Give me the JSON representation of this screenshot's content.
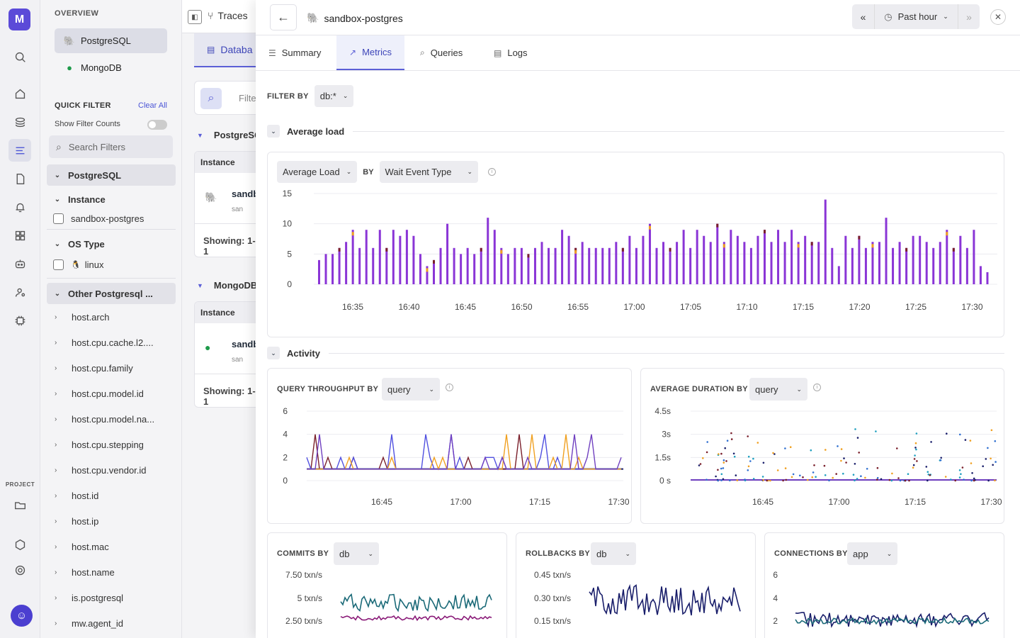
{
  "rail": {
    "logo": "M",
    "project_label": "PROJECT",
    "icons": [
      "search-icon",
      "home-icon",
      "layers-icon",
      "list-icon",
      "file-icon",
      "alert-icon",
      "dashboard-icon",
      "bot-icon",
      "user-search-icon",
      "chip-icon",
      "folder-icon",
      "cube-icon",
      "gear-icon"
    ],
    "avatar": "☺"
  },
  "filter_panel": {
    "overview_title": "OVERVIEW",
    "databases": [
      {
        "label": "PostgreSQL",
        "icon": "postgres-icon"
      },
      {
        "label": "MongoDB",
        "icon": "mongodb-icon"
      }
    ],
    "quick_filter_title": "QUICK FILTER",
    "clear_all": "Clear All",
    "show_filter_counts": "Show Filter Counts",
    "search_placeholder": "Search Filters",
    "postgres_section": "PostgreSQL",
    "instance_section": "Instance",
    "instance_value": "sandbox-postgres",
    "os_section": "OS Type",
    "os_value": "linux",
    "other_section": "Other Postgresql ...",
    "attributes": [
      "host.arch",
      "host.cpu.cache.l2....",
      "host.cpu.family",
      "host.cpu.model.id",
      "host.cpu.model.na...",
      "host.cpu.stepping",
      "host.cpu.vendor.id",
      "host.id",
      "host.ip",
      "host.mac",
      "host.name",
      "is.postgresql",
      "mw.agent_id"
    ]
  },
  "background": {
    "traces_label": "Traces",
    "tab_label": "Databa",
    "search_text": "Filte",
    "group1": "PostgreSQ",
    "group2": "MongoDB",
    "instance_header": "Instance",
    "row_name": "sandb",
    "row_sub": "san",
    "showing": "Showing: 1-1"
  },
  "overlay": {
    "title": "sandbox-postgres",
    "time_range": "Past hour",
    "tabs": [
      {
        "label": "Summary",
        "icon": "☰"
      },
      {
        "label": "Metrics",
        "icon": "↗"
      },
      {
        "label": "Queries",
        "icon": "⌕"
      },
      {
        "label": "Logs",
        "icon": "▤"
      }
    ],
    "active_tab": "Metrics",
    "filter_by_label": "FILTER BY",
    "filter_by_value": "db:*",
    "section_average_load": "Average load",
    "section_activity": "Activity",
    "avg_load_metric": "Average Load",
    "avg_load_by": "BY",
    "avg_load_group": "Wait Event Type",
    "throughput_title": "QUERY THROUGHPUT BY",
    "throughput_group": "query",
    "duration_title": "AVERAGE DURATION BY",
    "duration_group": "query",
    "commits_title": "COMMITS BY",
    "commits_group": "db",
    "rollbacks_title": "ROLLBACKS BY",
    "rollbacks_group": "db",
    "connections_title": "CONNECTIONS BY",
    "connections_group": "app"
  },
  "colors": {
    "accent": "#5b5fd6",
    "purple": "#8a35d6",
    "maroon": "#7a1f2b",
    "orange": "#f0a020",
    "navy": "#1a1f6b",
    "teal": "#1b6a78",
    "magenta": "#8a1a78"
  },
  "chart_data": [
    {
      "type": "bar",
      "title": "Average Load",
      "x_ticks": [
        "16:35",
        "16:40",
        "16:45",
        "16:50",
        "16:55",
        "17:00",
        "17:05",
        "17:10",
        "17:15",
        "17:20",
        "17:25",
        "17:30"
      ],
      "y_ticks": [
        "0",
        "5",
        "10",
        "15"
      ],
      "ylim": [
        0,
        15
      ],
      "series": [
        {
          "name": "",
          "values": [
            4,
            5,
            5,
            6,
            7,
            9,
            6,
            9,
            6,
            9,
            6,
            9,
            8,
            9,
            8,
            5,
            3,
            4,
            6,
            10,
            6,
            5,
            6,
            5,
            6,
            11,
            9,
            6,
            5,
            6,
            6,
            5,
            6,
            7,
            6,
            6,
            9,
            8,
            6,
            7,
            6,
            6,
            6,
            6,
            7,
            6,
            8,
            6,
            8,
            10,
            6,
            7,
            6,
            7,
            9,
            6,
            9,
            8,
            7,
            10,
            7,
            9,
            8,
            7,
            6,
            8,
            9,
            7,
            9,
            7,
            9,
            7,
            8,
            7,
            7,
            14,
            6,
            3,
            8,
            6,
            8,
            6,
            7,
            7,
            11,
            6,
            7,
            6,
            8,
            8,
            7,
            6,
            7,
            9,
            6,
            8,
            6,
            9,
            3,
            2
          ]
        }
      ]
    },
    {
      "type": "line",
      "title": "QUERY THROUGHPUT BY query",
      "x_ticks": [
        "16:45",
        "17:00",
        "17:15",
        "17:30"
      ],
      "y_ticks": [
        "0",
        "2",
        "4",
        "6"
      ],
      "ylim": [
        0,
        6
      ]
    },
    {
      "type": "scatter",
      "title": "AVERAGE DURATION BY query",
      "x_ticks": [
        "16:45",
        "17:00",
        "17:15",
        "17:30"
      ],
      "y_ticks": [
        "0 s",
        "1.5s",
        "3s",
        "4.5s"
      ]
    },
    {
      "type": "line",
      "title": "COMMITS BY db",
      "y_ticks": [
        "7.50 txn/s",
        "5 txn/s",
        "2.50 txn/s"
      ]
    },
    {
      "type": "line",
      "title": "ROLLBACKS BY db",
      "y_ticks": [
        "0.45 txn/s",
        "0.30 txn/s",
        "0.15 txn/s"
      ]
    },
    {
      "type": "line",
      "title": "CONNECTIONS BY app",
      "y_ticks": [
        "6",
        "4",
        "2"
      ]
    }
  ]
}
